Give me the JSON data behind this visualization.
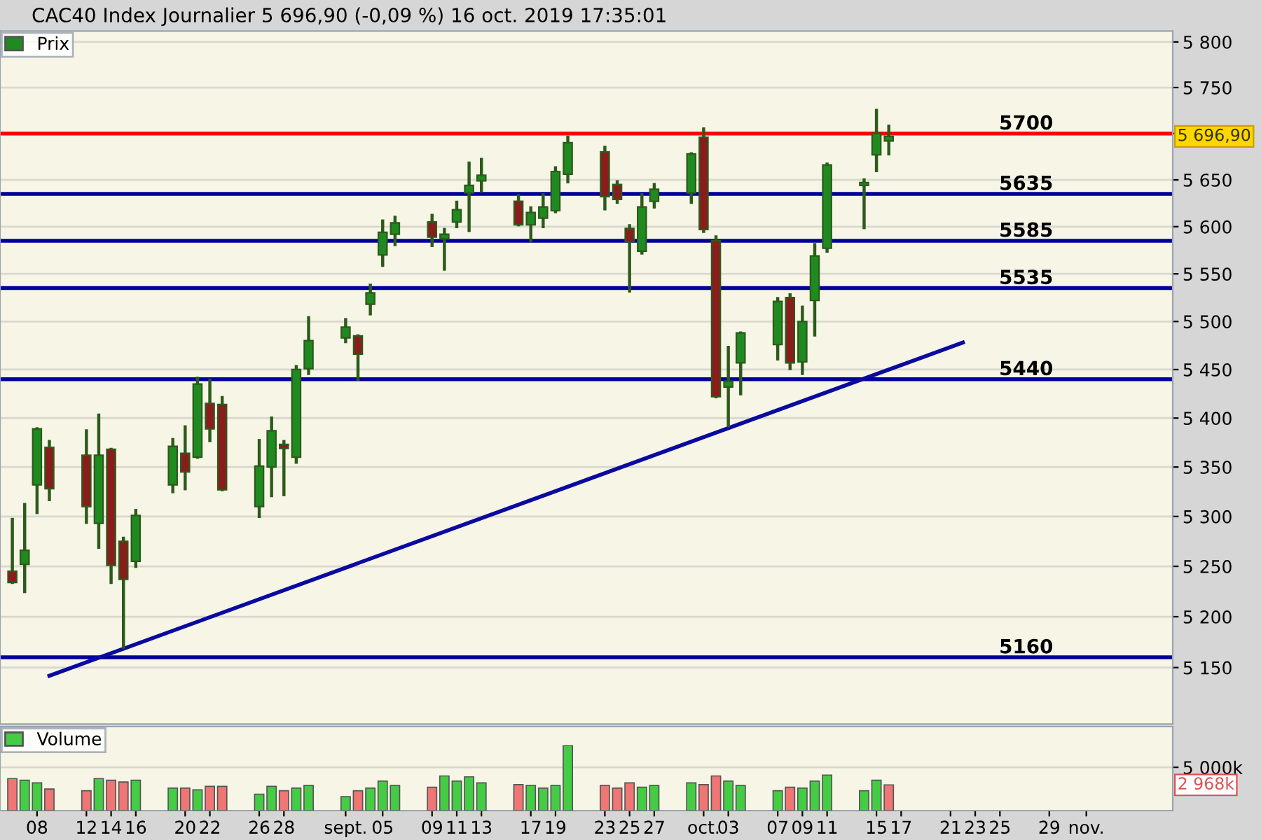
{
  "chart_data": [
    {
      "type": "candlestick",
      "title": "CAC40 Index Journalier 5 696,90 (-0,09 %) 16 oct. 2019 17:35:01",
      "x": [
        "2019-08-06",
        "2019-08-07",
        "2019-08-08",
        "2019-08-09",
        "2019-08-12",
        "2019-08-13",
        "2019-08-14",
        "2019-08-15",
        "2019-08-16",
        "2019-08-19",
        "2019-08-20",
        "2019-08-21",
        "2019-08-22",
        "2019-08-23",
        "2019-08-26",
        "2019-08-27",
        "2019-08-28",
        "2019-08-29",
        "2019-08-30",
        "2019-09-02",
        "2019-09-03",
        "2019-09-04",
        "2019-09-05",
        "2019-09-06",
        "2019-09-09",
        "2019-09-10",
        "2019-09-11",
        "2019-09-12",
        "2019-09-13",
        "2019-09-16",
        "2019-09-17",
        "2019-09-18",
        "2019-09-19",
        "2019-09-20",
        "2019-09-23",
        "2019-09-24",
        "2019-09-25",
        "2019-09-26",
        "2019-09-27",
        "2019-09-30",
        "2019-10-01",
        "2019-10-02",
        "2019-10-03",
        "2019-10-04",
        "2019-10-07",
        "2019-10-08",
        "2019-10-09",
        "2019-10-10",
        "2019-10-11",
        "2019-10-14",
        "2019-10-15",
        "2019-10-16"
      ],
      "series": [
        {
          "name": "Prix",
          "type": "candlestick",
          "color": "#2d5a1b",
          "colors": [
            "#8b1c1c",
            "#1f8a1f",
            "#1f8a1f",
            "#8b1c1c",
            "#8b1c1c",
            "#1f8a1f",
            "#8b1c1c",
            "#8b1c1c",
            "#1f8a1f",
            "#1f8a1f",
            "#8b1c1c",
            "#1f8a1f",
            "#8b1c1c",
            "#8b1c1c",
            "#1f8a1f",
            "#1f8a1f",
            "#8b1c1c",
            "#1f8a1f",
            "#1f8a1f",
            "#1f8a1f",
            "#8b1c1c",
            "#1f8a1f",
            "#1f8a1f",
            "#1f8a1f",
            "#8b1c1c",
            "#1f8a1f",
            "#1f8a1f",
            "#1f8a1f",
            "#1f8a1f",
            "#8b1c1c",
            "#1f8a1f",
            "#1f8a1f",
            "#1f8a1f",
            "#1f8a1f",
            "#8b1c1c",
            "#8b1c1c",
            "#8b1c1c",
            "#1f8a1f",
            "#1f8a1f",
            "#1f8a1f",
            "#8b1c1c",
            "#8b1c1c",
            "#1f8a1f",
            "#1f8a1f",
            "#1f8a1f",
            "#8b1c1c",
            "#1f8a1f",
            "#1f8a1f",
            "#1f8a1f",
            "#1f8a1f",
            "#1f8a1f",
            "#1f8a1f"
          ],
          "ohlc": [
            [
              5245,
              5297,
              5234,
              5234
            ],
            [
              5252,
              5312,
              5225,
              5266
            ],
            [
              5332,
              5389,
              5304,
              5389
            ],
            [
              5370,
              5376,
              5317,
              5328
            ],
            [
              5362,
              5387,
              5294,
              5310
            ],
            [
              5293,
              5403,
              5269,
              5362
            ],
            [
              5368,
              5368,
              5234,
              5251
            ],
            [
              5275,
              5278,
              5170,
              5237
            ],
            [
              5255,
              5306,
              5250,
              5301
            ],
            [
              5332,
              5378,
              5325,
              5371
            ],
            [
              5364,
              5391,
              5328,
              5345
            ],
            [
              5360,
              5441,
              5360,
              5435
            ],
            [
              5415,
              5439,
              5377,
              5389
            ],
            [
              5414,
              5421,
              5327,
              5327
            ],
            [
              5310,
              5377,
              5300,
              5351
            ],
            [
              5350,
              5400,
              5321,
              5387
            ],
            [
              5373,
              5376,
              5322,
              5369
            ],
            [
              5360,
              5453,
              5355,
              5450
            ],
            [
              5451,
              5504,
              5446,
              5480
            ],
            [
              5483,
              5502,
              5479,
              5494
            ],
            [
              5485,
              5485,
              5440,
              5466
            ],
            [
              5518,
              5538,
              5508,
              5530
            ],
            [
              5570,
              5606,
              5559,
              5594
            ],
            [
              5592,
              5610,
              5581,
              5604
            ],
            [
              5605,
              5612,
              5580,
              5589
            ],
            [
              5587,
              5597,
              5555,
              5592
            ],
            [
              5605,
              5626,
              5600,
              5618
            ],
            [
              5636,
              5668,
              5596,
              5644
            ],
            [
              5649,
              5672,
              5638,
              5655
            ],
            [
              5627,
              5633,
              5602,
              5602
            ],
            [
              5602,
              5620,
              5585,
              5615
            ],
            [
              5609,
              5634,
              5600,
              5621
            ],
            [
              5617,
              5663,
              5616,
              5659
            ],
            [
              5656,
              5696,
              5648,
              5690
            ],
            [
              5680,
              5685,
              5619,
              5632
            ],
            [
              5645,
              5648,
              5626,
              5629
            ],
            [
              5598,
              5601,
              5532,
              5584
            ],
            [
              5574,
              5634,
              5572,
              5621
            ],
            [
              5627,
              5645,
              5621,
              5640
            ],
            [
              5636,
              5678,
              5626,
              5678
            ],
            [
              5696,
              5705,
              5595,
              5597
            ],
            [
              5585,
              5589,
              5422,
              5422
            ],
            [
              5432,
              5473,
              5392,
              5438
            ],
            [
              5457,
              5488,
              5425,
              5488
            ],
            [
              5476,
              5524,
              5461,
              5521
            ],
            [
              5525,
              5528,
              5451,
              5457
            ],
            [
              5458,
              5515,
              5446,
              5500
            ],
            [
              5522,
              5581,
              5486,
              5569
            ],
            [
              5577,
              5667,
              5574,
              5666
            ],
            [
              5644,
              5650,
              5599,
              5647
            ],
            [
              5677,
              5725,
              5660,
              5700
            ],
            [
              5692,
              5708,
              5678,
              5696.9
            ]
          ]
        },
        {
          "type": "line",
          "color": "#0a0aa0",
          "x": [
            "2019-08-09",
            "2019-10-22"
          ],
          "values": [
            5142,
            5478
          ]
        }
      ],
      "annotations": [
        "5 696,90"
      ],
      "ref_lines": [
        {
          "axis": "y",
          "value": 5700,
          "label": "5700",
          "color": "#ff0000"
        },
        {
          "axis": "y",
          "value": 5635,
          "label": "5635",
          "color": "#000099"
        },
        {
          "axis": "y",
          "value": 5585,
          "label": "5585",
          "color": "#000099"
        },
        {
          "axis": "y",
          "value": 5535,
          "label": "5535",
          "color": "#000099"
        },
        {
          "axis": "y",
          "value": 5440,
          "label": "5440",
          "color": "#000099"
        },
        {
          "axis": "y",
          "value": 5160,
          "label": "5160",
          "color": "#000099"
        }
      ],
      "log": true,
      "ylim": [
        5095,
        5812
      ],
      "yticks": [
        {
          "value": 5150,
          "label": "5 150"
        },
        {
          "value": 5200,
          "label": "5 200"
        },
        {
          "value": 5250,
          "label": "5 250"
        },
        {
          "value": 5300,
          "label": "5 300"
        },
        {
          "value": 5350,
          "label": "5 350"
        },
        {
          "value": 5400,
          "label": "5 400"
        },
        {
          "value": 5450,
          "label": "5 450"
        },
        {
          "value": 5500,
          "label": "5 500"
        },
        {
          "value": 5550,
          "label": "5 550"
        },
        {
          "value": 5600,
          "label": "5 600"
        },
        {
          "value": 5650,
          "label": "5 650"
        },
        {
          "value": 5700,
          "label": null
        },
        {
          "value": 5750,
          "label": "5 750"
        },
        {
          "value": 5800,
          "label": "5 800"
        }
      ],
      "xlim": [
        "2019-08-05",
        "2019-11-08"
      ],
      "tick_labels": "y",
      "grid": "y",
      "legend": "top left"
    },
    {
      "type": "bar",
      "x": [
        "2019-08-06",
        "2019-08-07",
        "2019-08-08",
        "2019-08-09",
        "2019-08-12",
        "2019-08-13",
        "2019-08-14",
        "2019-08-15",
        "2019-08-16",
        "2019-08-19",
        "2019-08-20",
        "2019-08-21",
        "2019-08-22",
        "2019-08-23",
        "2019-08-26",
        "2019-08-27",
        "2019-08-28",
        "2019-08-29",
        "2019-08-30",
        "2019-09-02",
        "2019-09-03",
        "2019-09-04",
        "2019-09-05",
        "2019-09-06",
        "2019-09-09",
        "2019-09-10",
        "2019-09-11",
        "2019-09-12",
        "2019-09-13",
        "2019-09-16",
        "2019-09-17",
        "2019-09-18",
        "2019-09-19",
        "2019-09-20",
        "2019-09-23",
        "2019-09-24",
        "2019-09-25",
        "2019-09-26",
        "2019-09-27",
        "2019-09-30",
        "2019-10-01",
        "2019-10-02",
        "2019-10-03",
        "2019-10-04",
        "2019-10-07",
        "2019-10-08",
        "2019-10-09",
        "2019-10-10",
        "2019-10-11",
        "2019-10-14",
        "2019-10-15",
        "2019-10-16"
      ],
      "series": [
        {
          "name": "Volume",
          "color": "#44cc44",
          "values": [
            3700,
            3500,
            3200,
            2500,
            2300,
            3700,
            3500,
            3300,
            3500,
            2600,
            2600,
            2400,
            2800,
            2800,
            1900,
            2800,
            2300,
            2600,
            2900,
            1600,
            2300,
            2600,
            3400,
            2900,
            2700,
            4000,
            3400,
            3900,
            3200,
            3000,
            2900,
            2600,
            2900,
            7500,
            2900,
            2600,
            3200,
            2700,
            2900,
            3200,
            3000,
            4000,
            3400,
            2900,
            2300,
            2700,
            2600,
            3400,
            4100,
            2300,
            3500,
            2968
          ],
          "colors": [
            "#f07575",
            "#44cc44",
            "#44cc44",
            "#f07575",
            "#f07575",
            "#44cc44",
            "#f07575",
            "#f07575",
            "#44cc44",
            "#44cc44",
            "#f07575",
            "#44cc44",
            "#f07575",
            "#f07575",
            "#44cc44",
            "#44cc44",
            "#f07575",
            "#44cc44",
            "#44cc44",
            "#44cc44",
            "#f07575",
            "#44cc44",
            "#44cc44",
            "#44cc44",
            "#f07575",
            "#44cc44",
            "#44cc44",
            "#44cc44",
            "#44cc44",
            "#f07575",
            "#44cc44",
            "#44cc44",
            "#44cc44",
            "#44cc44",
            "#f07575",
            "#f07575",
            "#f07575",
            "#44cc44",
            "#44cc44",
            "#44cc44",
            "#f07575",
            "#f07575",
            "#44cc44",
            "#44cc44",
            "#44cc44",
            "#f07575",
            "#44cc44",
            "#44cc44",
            "#44cc44",
            "#44cc44",
            "#44cc44",
            "#f07575"
          ]
        }
      ],
      "annotations": [
        "2 968k"
      ],
      "ylim": [
        0,
        9700
      ],
      "yticks": [
        {
          "value": 5000,
          "label": "5 000k"
        }
      ],
      "xlim": [
        "2019-08-05",
        "2019-11-08"
      ],
      "xticks": [
        {
          "value": "2019-08-08",
          "label": "08"
        },
        {
          "value": "2019-08-12",
          "label": "12"
        },
        {
          "value": "2019-08-14",
          "label": "14"
        },
        {
          "value": "2019-08-16",
          "label": "16"
        },
        {
          "value": "2019-08-20",
          "label": "20"
        },
        {
          "value": "2019-08-22",
          "label": "22"
        },
        {
          "value": "2019-08-26",
          "label": "26"
        },
        {
          "value": "2019-08-28",
          "label": "28"
        },
        {
          "value": "2019-09-02",
          "label": "sept."
        },
        {
          "value": "2019-09-05",
          "label": "05"
        },
        {
          "value": "2019-09-09",
          "label": "09"
        },
        {
          "value": "2019-09-11",
          "label": "11"
        },
        {
          "value": "2019-09-13",
          "label": "13"
        },
        {
          "value": "2019-09-17",
          "label": "17"
        },
        {
          "value": "2019-09-19",
          "label": "19"
        },
        {
          "value": "2019-09-23",
          "label": "23"
        },
        {
          "value": "2019-09-25",
          "label": "25"
        },
        {
          "value": "2019-09-27",
          "label": "27"
        },
        {
          "value": "2019-10-01",
          "label": "oct."
        },
        {
          "value": "2019-10-03",
          "label": "03"
        },
        {
          "value": "2019-10-07",
          "label": "07"
        },
        {
          "value": "2019-10-09",
          "label": "09"
        },
        {
          "value": "2019-10-11",
          "label": "11"
        },
        {
          "value": "2019-10-15",
          "label": "15"
        },
        {
          "value": "2019-10-17",
          "label": "17"
        },
        {
          "value": "2019-10-21",
          "label": "21"
        },
        {
          "value": "2019-10-23",
          "label": "23"
        },
        {
          "value": "2019-10-25",
          "label": "25"
        },
        {
          "value": "2019-10-29",
          "label": "29"
        },
        {
          "value": "2019-11-01",
          "label": "nov."
        }
      ],
      "grid": "y",
      "legend": "top left"
    }
  ]
}
